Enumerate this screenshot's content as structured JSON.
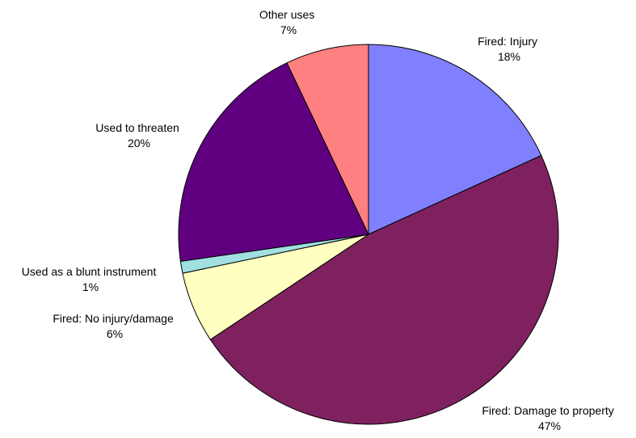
{
  "chart_data": {
    "type": "pie",
    "title": "",
    "start_angle_deg": 0,
    "direction": "clockwise",
    "legend": "none",
    "slices": [
      {
        "name": "Fired: Injury",
        "label": "Fired: Injury",
        "value": 18,
        "value_label": "18%",
        "color": "#8080FF"
      },
      {
        "name": "Fired: Damage to property",
        "label": "Fired: Damage to property",
        "value": 47,
        "value_label": "47%",
        "color": "#7F215F"
      },
      {
        "name": "Fired: No injury/damage",
        "label": "Fired: No injury/damage",
        "value": 6,
        "value_label": "6%",
        "color": "#FFFFC0"
      },
      {
        "name": "Used as a blunt instrument",
        "label": "Used as a blunt instrument",
        "value": 1,
        "value_label": "1%",
        "color": "#A0E0E0"
      },
      {
        "name": "Used to threaten",
        "label": "Used to threaten",
        "value": 20,
        "value_label": "20%",
        "color": "#600080"
      },
      {
        "name": "Other uses",
        "label": "Other uses",
        "value": 7,
        "value_label": "7%",
        "color": "#FF8080"
      }
    ]
  }
}
